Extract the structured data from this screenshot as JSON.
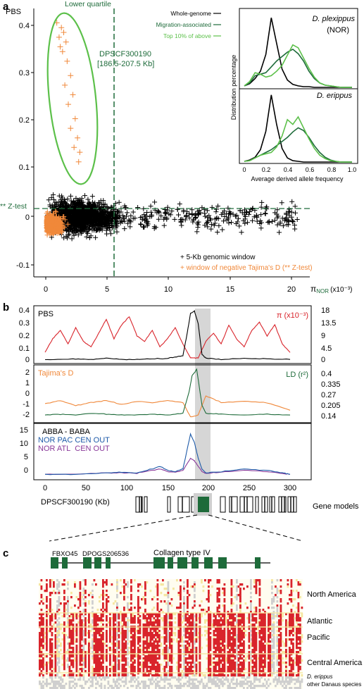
{
  "figure": {
    "panel_a_label": "a",
    "panel_b_label": "b",
    "panel_c_label": "c"
  },
  "colors": {
    "black": "#000000",
    "orange": "#f0883a",
    "green_dark": "#1e6b3a",
    "green_light": "#5cc04a",
    "red": "#d9242b",
    "blue": "#1e5aa8",
    "purple": "#8a3a9a",
    "gray_shade": "#cfcfcf",
    "yellow": "#f5e6a0"
  },
  "panel_a": {
    "ylabel": "PBS",
    "xlabel_prefix": "π",
    "xlabel_sub": "NOR",
    "xlabel_unit": "(x10⁻³)",
    "lower_quartile_label": "Lower quartile",
    "ztest_label": "** Z-test",
    "outlier_label_1": "DPSCF300190",
    "outlier_label_2": "[186.5-207.5 Kb]",
    "legend_black": "+ 5-Kb genomic window",
    "legend_orange": "+ window of negative Tajima's D (** Z-test)",
    "y_ticks": [
      "0.4",
      "0.3",
      "0.2",
      "0.1",
      "0",
      "-0.1"
    ],
    "x_ticks": [
      "0",
      "5",
      "10",
      "15",
      "20"
    ],
    "inset": {
      "legend_whole": "Whole-genome",
      "legend_migration": "Migration-associated",
      "legend_top10": "Top 10% of above",
      "species_1": "D. plexippus",
      "species_1_sub": "(NOR)",
      "species_2": "D. erippus",
      "ylabel": "Distribution percentage",
      "xlabel": "Average derived allele frequency",
      "x_ticks": [
        "0",
        "0.2",
        "0.4",
        "0.6",
        "0.8",
        "1.0"
      ]
    }
  },
  "panel_b": {
    "track1_left": "PBS",
    "track1_right": "π (x10⁻³)",
    "track1_left_ticks": [
      "0.4",
      "0.3",
      "0.2",
      "0.1",
      "0"
    ],
    "track1_right_ticks": [
      "18",
      "13.5",
      "9",
      "4.5",
      "0"
    ],
    "track2_left": "Tajima's D",
    "track2_right": "LD (r²)",
    "track2_left_ticks": [
      "2",
      "1",
      "0",
      "-1",
      "-2"
    ],
    "track2_right_ticks": [
      "0.4",
      "0.335",
      "0.27",
      "0.205",
      "0.14"
    ],
    "track3_title": "ABBA - BABA",
    "track3_line1": "NOR PAC CEN OUT",
    "track3_line2_a": "NOR ATL",
    "track3_line2_b": "CEN OUT",
    "track3_ticks": [
      "15",
      "10",
      "5",
      "0"
    ],
    "x_ticks": [
      "0",
      "50",
      "100",
      "150",
      "200",
      "250",
      "300"
    ],
    "xlabel": "DPSCF300190 (Kb)",
    "gene_models_label": "Gene models"
  },
  "panel_c": {
    "gene_1": "FBXO45",
    "gene_2": "DPOGS206536",
    "gene_3": "Collagen type IV",
    "row_label_1": "North America",
    "row_label_2": "Atlantic",
    "row_label_3": "Pacific",
    "row_label_4": "Central America",
    "row_label_5": "D. erippus",
    "row_label_6": "other Danaus species"
  },
  "chart_data": [
    {
      "type": "scatter",
      "panel": "a",
      "ylabel": "PBS",
      "xlabel": "πNOR (x10⁻³)",
      "xlim": [
        -1,
        23
      ],
      "ylim": [
        -0.12,
        0.44
      ],
      "lower_quartile_x": 5.6,
      "ztest_y": 0.017,
      "series": [
        {
          "name": "5-Kb genomic window",
          "color": "#000000",
          "bulk_x_range": [
            0,
            22
          ],
          "bulk_y_range": [
            -0.1,
            0.06
          ]
        },
        {
          "name": "window of negative Tajima's D (** Z-test)",
          "color": "#f0883a",
          "outlier_points": [
            [
              1.0,
              0.41
            ],
            [
              1.4,
              0.4
            ],
            [
              1.6,
              0.39
            ],
            [
              1.2,
              0.38
            ],
            [
              1.8,
              0.37
            ],
            [
              1.5,
              0.35
            ],
            [
              1.9,
              0.33
            ],
            [
              1.3,
              0.36
            ],
            [
              2.2,
              0.3
            ],
            [
              1.7,
              0.28
            ],
            [
              2.4,
              0.26
            ],
            [
              2.0,
              0.24
            ],
            [
              2.6,
              0.21
            ],
            [
              2.2,
              0.19
            ],
            [
              2.8,
              0.17
            ],
            [
              2.5,
              0.15
            ],
            [
              3.0,
              0.14
            ],
            [
              2.9,
              0.12
            ]
          ]
        }
      ]
    },
    {
      "type": "line",
      "panel": "a-inset",
      "title": "D. plexippus (NOR)",
      "xlabel": "Average derived allele frequency",
      "ylabel": "Distribution percentage",
      "x": [
        0.0,
        0.05,
        0.1,
        0.15,
        0.2,
        0.25,
        0.3,
        0.35,
        0.4,
        0.45,
        0.5,
        0.55,
        0.6,
        0.65,
        0.7,
        0.75,
        0.8,
        0.85,
        0.9,
        0.95,
        1.0
      ],
      "series": [
        {
          "name": "Whole-genome",
          "values": [
            0.02,
            0.05,
            0.12,
            0.22,
            0.45,
            0.95,
            0.6,
            0.25,
            0.1,
            0.04,
            0.02,
            0.01,
            0.01,
            0,
            0,
            0,
            0,
            0,
            0,
            0,
            0
          ]
        },
        {
          "name": "Migration-associated",
          "values": [
            0.02,
            0.06,
            0.16,
            0.18,
            0.2,
            0.28,
            0.36,
            0.42,
            0.48,
            0.52,
            0.46,
            0.36,
            0.22,
            0.12,
            0.06,
            0.03,
            0.02,
            0.01,
            0,
            0,
            0
          ]
        },
        {
          "name": "Top 10% of above",
          "values": [
            0.02,
            0.08,
            0.2,
            0.18,
            0.14,
            0.16,
            0.22,
            0.3,
            0.44,
            0.58,
            0.54,
            0.4,
            0.26,
            0.14,
            0.06,
            0.03,
            0.02,
            0.01,
            0,
            0,
            0
          ]
        }
      ]
    },
    {
      "type": "line",
      "panel": "a-inset",
      "title": "D. erippus",
      "x": [
        0.0,
        0.05,
        0.1,
        0.15,
        0.2,
        0.25,
        0.3,
        0.35,
        0.4,
        0.45,
        0.5,
        0.55,
        0.6,
        0.65,
        0.7,
        0.75,
        0.8,
        0.85,
        0.9,
        0.95,
        1.0
      ],
      "series": [
        {
          "name": "Whole-genome",
          "values": [
            0.01,
            0.03,
            0.07,
            0.18,
            0.45,
            0.98,
            0.55,
            0.2,
            0.06,
            0.02,
            0.01,
            0,
            0,
            0,
            0,
            0,
            0,
            0,
            0,
            0,
            0
          ]
        },
        {
          "name": "Migration-associated",
          "values": [
            0.01,
            0.02,
            0.06,
            0.1,
            0.14,
            0.18,
            0.24,
            0.3,
            0.36,
            0.44,
            0.5,
            0.46,
            0.36,
            0.24,
            0.14,
            0.07,
            0.03,
            0.01,
            0,
            0,
            0
          ]
        },
        {
          "name": "Top 10% of above",
          "values": [
            0.01,
            0.02,
            0.06,
            0.1,
            0.12,
            0.14,
            0.22,
            0.38,
            0.62,
            0.55,
            0.66,
            0.5,
            0.34,
            0.2,
            0.1,
            0.05,
            0.02,
            0.01,
            0,
            0,
            0
          ]
        }
      ]
    },
    {
      "type": "line",
      "panel": "b",
      "xlabel": "DPSCF300190 (Kb)",
      "xlim": [
        -10,
        325
      ],
      "highlight_region": [
        186.5,
        207.5
      ],
      "tracks": [
        {
          "left": "PBS",
          "right": "π (x10⁻³)",
          "left_ylim": [
            0,
            0.42
          ],
          "right_ylim": [
            0,
            18.9
          ],
          "series": [
            {
              "name": "PBS",
              "axis": "left",
              "color": "#000000",
              "x": [
                0,
                20,
                40,
                60,
                80,
                100,
                120,
                140,
                160,
                170,
                180,
                185,
                190,
                195,
                200,
                205,
                210,
                230,
                260,
                290,
                320
              ],
              "y": [
                0.01,
                0.01,
                0.015,
                0.01,
                0.02,
                0.01,
                0.01,
                0.015,
                0.02,
                0.03,
                0.04,
                0.2,
                0.38,
                0.4,
                0.3,
                0.05,
                0.02,
                0.01,
                0.02,
                0.015,
                0.01
              ]
            },
            {
              "name": "π",
              "axis": "right",
              "color": "#d9242b",
              "x": [
                0,
                10,
                20,
                30,
                40,
                50,
                60,
                70,
                80,
                90,
                100,
                110,
                120,
                130,
                140,
                150,
                160,
                170,
                180,
                190,
                200,
                210,
                220,
                230,
                240,
                250,
                260,
                270,
                280,
                290,
                300,
                310,
                320
              ],
              "y": [
                3,
                8,
                11,
                6,
                12,
                7,
                5,
                10,
                15,
                8,
                13,
                16,
                9,
                7,
                11,
                5,
                8,
                12,
                6,
                1,
                1,
                7,
                10,
                6,
                13,
                8,
                5,
                11,
                14,
                9,
                13,
                6,
                3
              ]
            }
          ]
        },
        {
          "left": "Tajima's D",
          "right": "LD (r²)",
          "left_ylim": [
            -2.8,
            2.6
          ],
          "right_ylim": [
            0.11,
            0.43
          ],
          "series": [
            {
              "name": "Tajima's D",
              "axis": "left",
              "color": "#f0883a",
              "x": [
                0,
                20,
                40,
                60,
                80,
                100,
                120,
                140,
                160,
                180,
                190,
                200,
                210,
                230,
                260,
                290,
                320
              ],
              "y": [
                -1.1,
                -0.8,
                -1.3,
                -1.0,
                -0.8,
                -1.2,
                -0.9,
                -1.0,
                -0.8,
                -1.0,
                -2.5,
                -2.3,
                -0.3,
                -1.0,
                -0.9,
                -1.0,
                -1.8
              ]
            },
            {
              "name": "LD",
              "axis": "right",
              "color": "#1e6b3a",
              "x": [
                0,
                20,
                40,
                60,
                80,
                100,
                120,
                140,
                160,
                180,
                188,
                192,
                198,
                205,
                210,
                230,
                260,
                290,
                320
              ],
              "y": [
                0.14,
                0.145,
                0.14,
                0.15,
                0.145,
                0.14,
                0.14,
                0.145,
                0.14,
                0.15,
                0.28,
                0.38,
                0.42,
                0.2,
                0.15,
                0.145,
                0.14,
                0.145,
                0.14
              ]
            }
          ]
        },
        {
          "left": "ABBA - BABA",
          "left_ylim": [
            -1,
            18
          ],
          "series": [
            {
              "name": "NOR PAC CEN OUT",
              "color": "#1e5aa8",
              "x": [
                0,
                40,
                80,
                100,
                120,
                140,
                150,
                160,
                170,
                180,
                190,
                195,
                200,
                205,
                210,
                230,
                260,
                290,
                310,
                320
              ],
              "y": [
                0,
                0,
                0.5,
                0.8,
                0.5,
                2,
                3,
                1.5,
                1,
                2,
                15,
                12,
                6,
                2,
                0.5,
                1,
                2,
                1.5,
                0.5,
                0
              ]
            },
            {
              "name": "NOR ATL CEN OUT",
              "color": "#8a3a9a",
              "x": [
                0,
                40,
                80,
                100,
                120,
                140,
                150,
                160,
                170,
                180,
                190,
                195,
                200,
                205,
                210,
                230,
                260,
                290,
                310,
                320
              ],
              "y": [
                0,
                0,
                0.5,
                0.6,
                0.4,
                1.5,
                2,
                1,
                0.8,
                1.5,
                6,
                5,
                3,
                1,
                0.3,
                0.8,
                1.5,
                1,
                0.3,
                0
              ]
            }
          ]
        }
      ]
    }
  ]
}
